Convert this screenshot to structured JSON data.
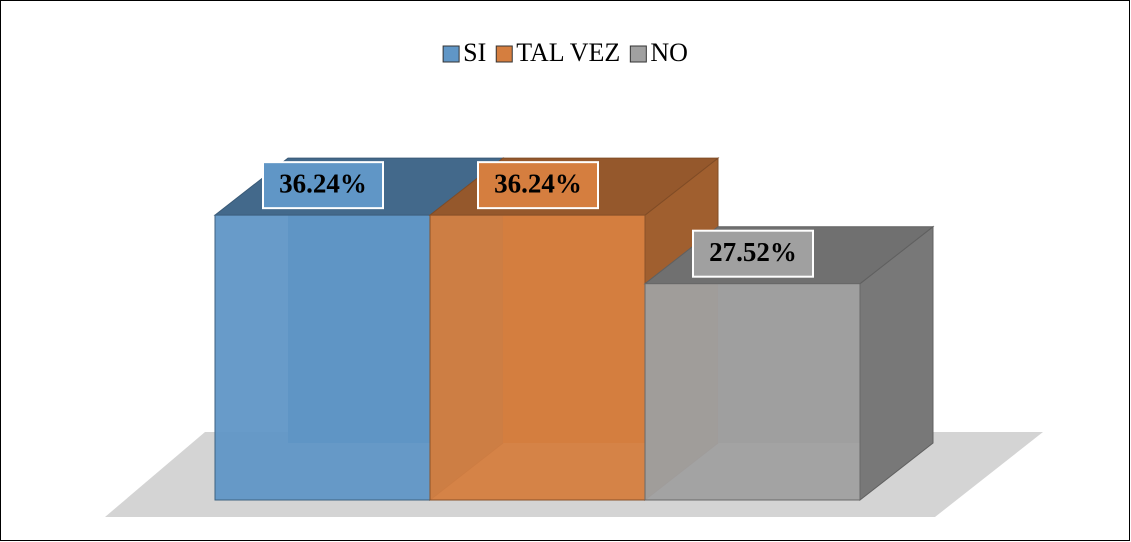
{
  "chart_data": {
    "type": "bar",
    "series": [
      {
        "name": "SI",
        "color": "#6096c6",
        "values": [
          36.24
        ],
        "value_labels": [
          "36.24%"
        ]
      },
      {
        "name": "TAL VEZ",
        "color": "#d57e3f",
        "values": [
          36.24
        ],
        "value_labels": [
          "36.24%"
        ]
      },
      {
        "name": "NO",
        "color": "#a0a0a0",
        "values": [
          27.52
        ],
        "value_labels": [
          "27.52%"
        ]
      }
    ],
    "legend": "top"
  }
}
